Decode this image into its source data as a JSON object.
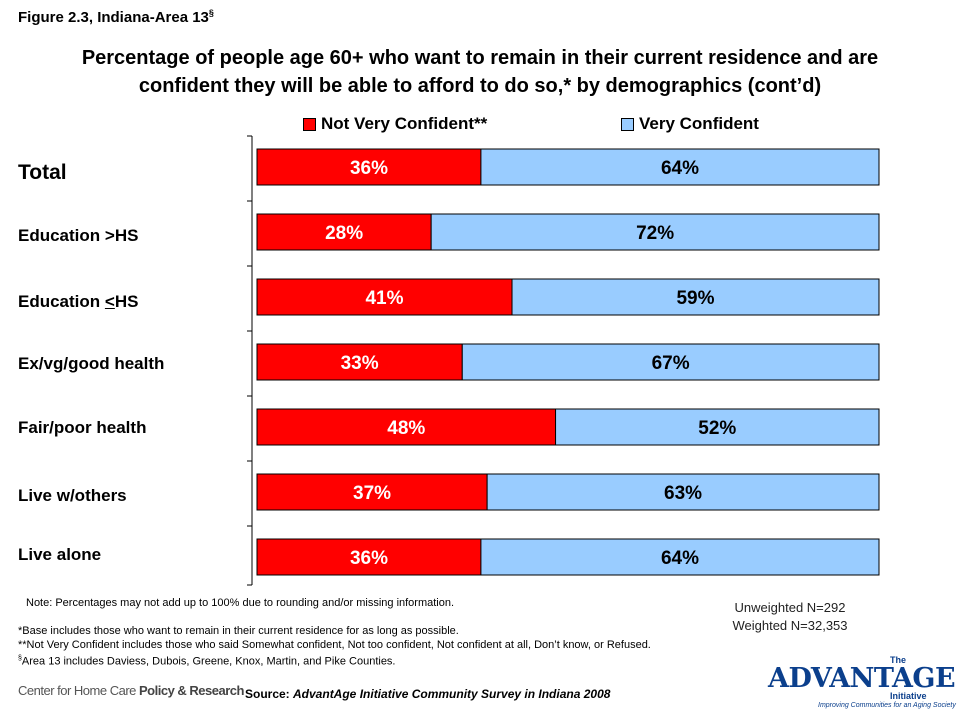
{
  "figure_label": "Figure 2.3, Indiana-Area 13",
  "figure_label_sup": "§",
  "title_line1": "Percentage of people age 60+ who want to remain in their current residence and are",
  "title_line2": "confident they will be able to afford to do so,* by demographics (cont’d)",
  "colors": {
    "not_confident": "#ff0000",
    "very_confident": "#99ccff"
  },
  "chart_data": {
    "type": "bar",
    "orientation": "horizontal",
    "stacked": true,
    "categories": [
      "Total",
      "Education >HS",
      "Education <HS",
      "Ex/vg/good health",
      "Fair/poor health",
      "Live w/others",
      "Live alone"
    ],
    "series": [
      {
        "name": "Not Very Confident**",
        "values": [
          36,
          28,
          41,
          33,
          48,
          37,
          36
        ],
        "labels": [
          "36%",
          "28%",
          "41%",
          "33%",
          "48%",
          "37%",
          "36%"
        ]
      },
      {
        "name": "Very Confident",
        "values": [
          64,
          72,
          59,
          67,
          52,
          63,
          64
        ],
        "labels": [
          "64%",
          "72%",
          "59%",
          "67%",
          "52%",
          "63%",
          "64%"
        ]
      }
    ],
    "xlim": [
      0,
      100
    ],
    "legend_position": "top"
  },
  "row_labels": {
    "edu_lt_prefix": "Education ",
    "edu_lt_u": "<",
    "edu_lt_suffix": "HS"
  },
  "note": "Note: Percentages may not add up to 100% due to rounding and/or missing information.",
  "footnote_base": "*Base includes those who want to remain in their current residence for as long as possible.",
  "footnote_nvc": "**Not Very Confident includes those who said Somewhat confident, Not too confident, Not confident at all, Don’t know, or Refused.",
  "footnote_area_sup": "§",
  "footnote_area": "Area 13 includes Daviess, Dubois, Greene, Knox, Martin, and Pike Counties.",
  "n_unweighted": "Unweighted N=292",
  "n_weighted": "Weighted N=32,353",
  "source_prefix": "Source: ",
  "source_text": "AdvantAge Initiative Community Survey in Indiana 2008",
  "logo_chc_a": "Center for Home Care ",
  "logo_chc_b": "Policy & Research",
  "logo_adv_the": "The",
  "logo_adv_word": "ADVANTAGE",
  "logo_adv_initiative": "Initiative",
  "logo_adv_tag": "Improving Communities for an Aging Society"
}
